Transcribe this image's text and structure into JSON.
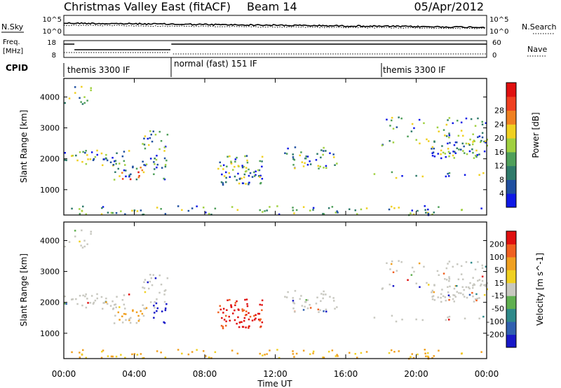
{
  "header": {
    "station": "Christmas Valley East (fitACF)",
    "beam": "Beam 14",
    "date": "05/Apr/2012"
  },
  "noise_panel": {
    "left_label": "N.Sky",
    "right_label": "N.Search",
    "left_ticks": [
      "10^5",
      "10^0"
    ],
    "right_ticks": [
      "10^5",
      "10^0"
    ]
  },
  "freq_panel": {
    "left_label_1": "Freq.",
    "left_label_2": "[MHz]",
    "right_label": "Nave",
    "left_ticks": [
      "18",
      "8"
    ],
    "right_ticks": [
      "60",
      "0"
    ]
  },
  "cpid": {
    "label": "CPID",
    "segments": [
      {
        "text": "themis 3300 IF",
        "start_hour": 0
      },
      {
        "text": "normal (fast) 151 IF",
        "start_hour": 6.1
      },
      {
        "text": "themis 3300 IF",
        "start_hour": 18
      }
    ]
  },
  "chart_data": [
    {
      "type": "heatmap",
      "title": "Power",
      "ylabel": "Slant Range [km]",
      "xlabel": "Time UT",
      "xlim_hours": [
        0,
        24
      ],
      "ylim_km": [
        180,
        4600
      ],
      "yticks": [
        1000,
        2000,
        3000,
        4000
      ],
      "colorbar": {
        "label": "Power [dB]",
        "ticks": [
          "4",
          "8",
          "12",
          "16",
          "20",
          "24",
          "28"
        ],
        "colors": [
          "#0f19e6",
          "#1f4fa0",
          "#2f7a6a",
          "#4fa05a",
          "#a0d040",
          "#f0d020",
          "#f08020",
          "#f04020",
          "#e01010"
        ]
      }
    },
    {
      "type": "heatmap",
      "title": "Velocity",
      "ylabel": "Slant Range [km]",
      "xlabel": "Time UT",
      "xlim_hours": [
        0,
        24
      ],
      "ylim_km": [
        180,
        4600
      ],
      "yticks": [
        1000,
        2000,
        3000,
        4000
      ],
      "xticks": [
        "00:00",
        "04:00",
        "08:00",
        "12:00",
        "16:00",
        "20:00",
        "00:00"
      ],
      "colorbar": {
        "label": "Velocity [m s^-1]",
        "ticks": [
          "200",
          "100",
          "50",
          "15",
          "-15",
          "-50",
          "-100",
          "-200"
        ],
        "colors": [
          "#1818c8",
          "#3060b0",
          "#2f8a8a",
          "#60b050",
          "#c8c8c0",
          "#f0d020",
          "#f0a020",
          "#f06020",
          "#e01010"
        ]
      }
    }
  ],
  "x_axis": {
    "label": "Time UT",
    "ticks": [
      "00:00",
      "04:00",
      "08:00",
      "12:00",
      "16:00",
      "20:00",
      "00:00"
    ]
  }
}
